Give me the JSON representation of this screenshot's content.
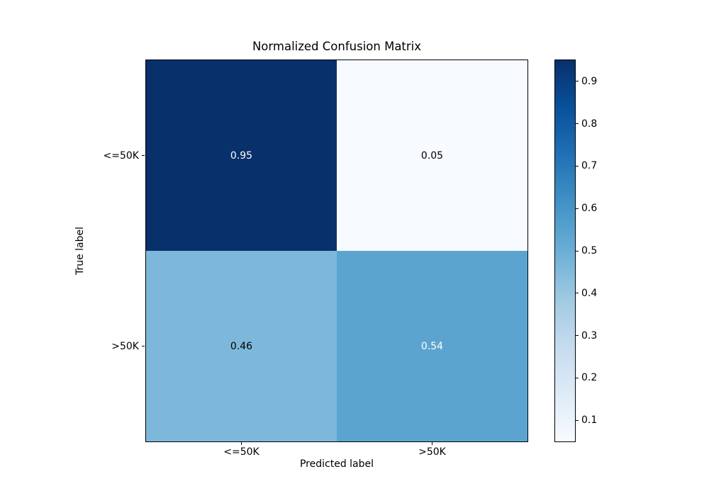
{
  "figure": {
    "background": "#ffffff"
  },
  "chart_data": {
    "type": "heatmap",
    "title": "Normalized Confusion Matrix",
    "xlabel": "Predicted label",
    "ylabel": "True label",
    "x_categories": [
      "<=50K",
      ">50K"
    ],
    "y_categories": [
      "<=50K",
      ">50K"
    ],
    "matrix": [
      [
        0.95,
        0.05
      ],
      [
        0.46,
        0.54
      ]
    ],
    "cells": [
      {
        "row": 0,
        "col": 0,
        "label": "0.95",
        "bg": "#08306b",
        "text_color": "#ffffff"
      },
      {
        "row": 0,
        "col": 1,
        "label": "0.05",
        "bg": "#f7fbff",
        "text_color": "#000000"
      },
      {
        "row": 1,
        "col": 0,
        "label": "0.46",
        "bg": "#7db8da",
        "text_color": "#000000"
      },
      {
        "row": 1,
        "col": 1,
        "label": "0.54",
        "bg": "#5ca4d0",
        "text_color": "#ffffff"
      }
    ],
    "colormap": "Blues",
    "colorbar": {
      "vmin": 0.05,
      "vmax": 0.95,
      "tick_labels": [
        "0.9",
        "0.8",
        "0.7",
        "0.6",
        "0.5",
        "0.4",
        "0.3",
        "0.2",
        "0.1"
      ],
      "tick_values": [
        0.9,
        0.8,
        0.7,
        0.6,
        0.5,
        0.4,
        0.3,
        0.2,
        0.1
      ],
      "gradient_top_to_bottom": [
        "#08306b",
        "#08519c",
        "#2171b5",
        "#4292c6",
        "#6baed6",
        "#9ecae1",
        "#c6dbef",
        "#deebf7",
        "#f7fbff"
      ]
    },
    "layout": {
      "grid": false,
      "legend": false,
      "colorbar_position": "right"
    }
  }
}
